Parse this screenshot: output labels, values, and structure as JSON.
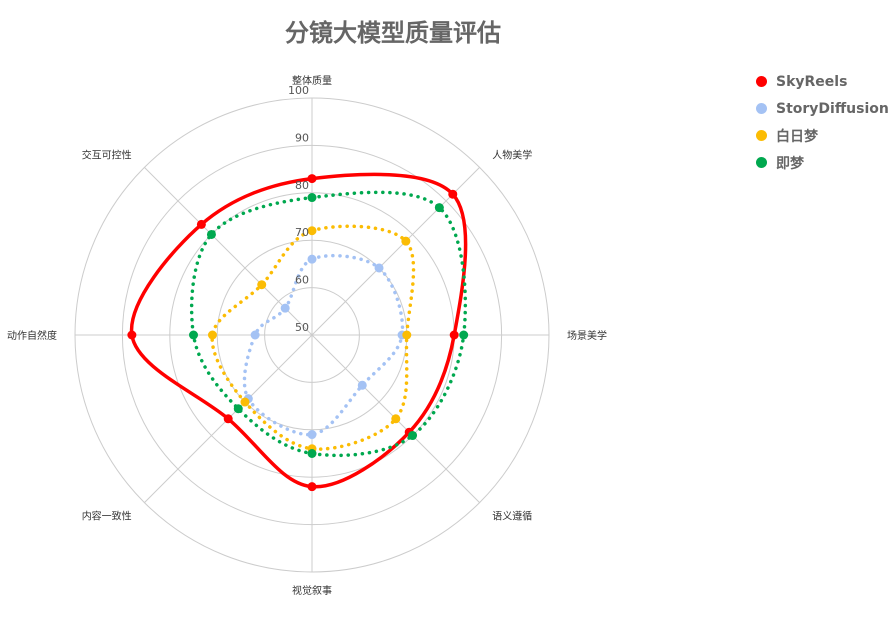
{
  "chart_data": {
    "type": "radar",
    "title": "分镜大模型质量评估",
    "axes": [
      "整体质量",
      "人物美学",
      "场景美学",
      "语义遵循",
      "视觉叙事",
      "内容一致性",
      "动作自然度",
      "交互可控性"
    ],
    "range": [
      50,
      100
    ],
    "ticks": [
      50,
      60,
      70,
      80,
      90,
      100
    ],
    "grid": true,
    "legend_position": "top-right",
    "series": [
      {
        "name": "SkyReels",
        "color": "#ff0000",
        "style": "solid",
        "values": [
          83,
          92,
          80,
          79,
          82,
          75,
          88,
          83
        ]
      },
      {
        "name": "StoryDiffusion",
        "color": "#a4c2f4",
        "style": "dotted",
        "values": [
          66,
          70,
          69,
          65,
          71,
          69,
          62,
          58
        ]
      },
      {
        "name": "白日梦",
        "color": "#fbbc04",
        "style": "dotted",
        "values": [
          72,
          78,
          70,
          75,
          74,
          70,
          71,
          65
        ]
      },
      {
        "name": "即梦",
        "color": "#00a84f",
        "style": "dotted",
        "values": [
          79,
          88,
          82,
          80,
          75,
          72,
          75,
          80
        ]
      }
    ]
  }
}
